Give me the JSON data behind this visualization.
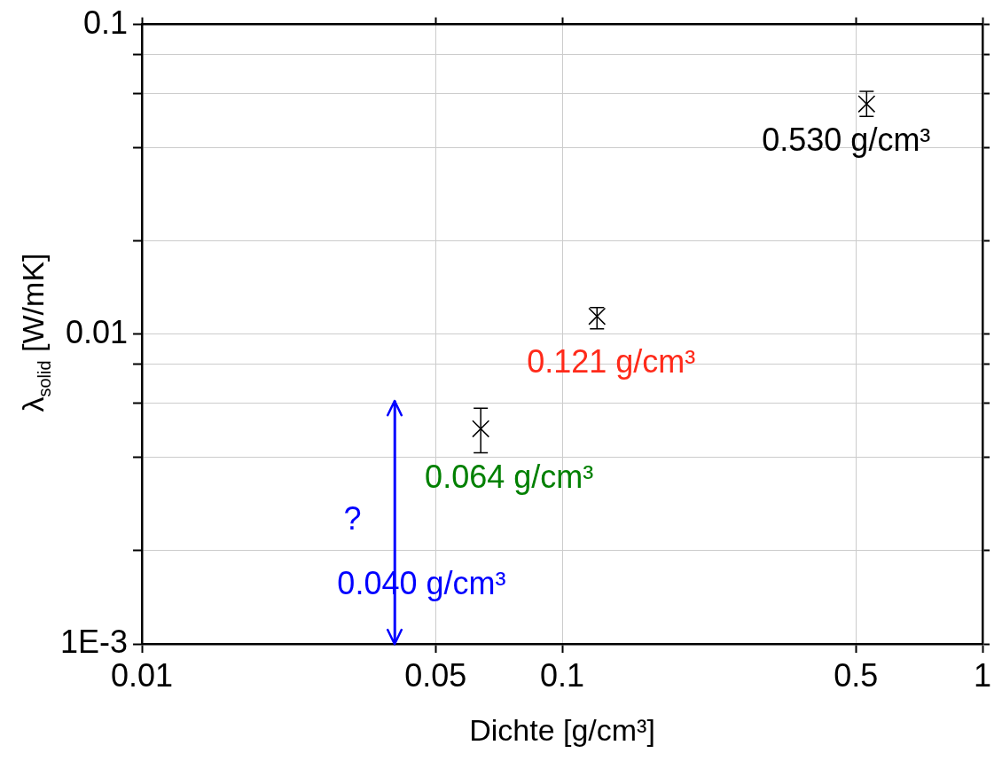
{
  "chart_data": {
    "type": "scatter",
    "xlabel": "Dichte [g/cm³]",
    "ylabel": "λ$_{solid}$ [W/mK]",
    "log": "xy",
    "grid": true,
    "legend": false,
    "marker": "cross",
    "xlim": [
      0.01,
      1
    ],
    "xticks": [
      0.01,
      0.05,
      0.1,
      0.5,
      1
    ],
    "ylim": [
      0.001,
      0.1
    ],
    "yticks": [
      {
        "value": 0.001,
        "label": "1E-3"
      },
      {
        "value": 0.002,
        "label": null
      },
      {
        "value": 0.004,
        "label": null
      },
      {
        "value": 0.006,
        "label": null
      },
      {
        "value": 0.008,
        "label": null
      },
      0.01,
      {
        "value": 0.02,
        "label": null
      },
      {
        "value": 0.04,
        "label": null
      },
      {
        "value": 0.06,
        "label": null
      },
      {
        "value": 0.08,
        "label": null
      },
      0.1
    ],
    "series": [
      {
        "type": "scatter",
        "color": "#000000",
        "x": [
          0.064,
          0.121,
          0.53
        ],
        "values": [
          0.00495,
          0.01142,
          0.0554
        ],
        "errors": [
          [
            0.00414,
            0.00577
          ],
          [
            0.0104,
            0.0122
          ],
          [
            0.0505,
            0.0608
          ]
        ]
      },
      {
        "type": "line",
        "color": "#0000ff",
        "marker": "none",
        "x": [
          0.04,
          0.04
        ],
        "values": [
          0.001,
          0.0061
        ]
      }
    ],
    "annotations": [
      {
        "text": "0.530 g/cm³",
        "x": 0.53,
        "y": 0.0554
      },
      {
        "text": "0.121 g/cm³",
        "x": 0.121,
        "y": 0.01142
      },
      {
        "text": "0.064 g/cm³",
        "x": 0.064,
        "y": 0.00495
      },
      {
        "text": "?",
        "x": 0.04,
        "y": 0.0025
      },
      {
        "text": "0.040 g/cm³",
        "x": 0.04,
        "y": 0.00154
      }
    ]
  }
}
